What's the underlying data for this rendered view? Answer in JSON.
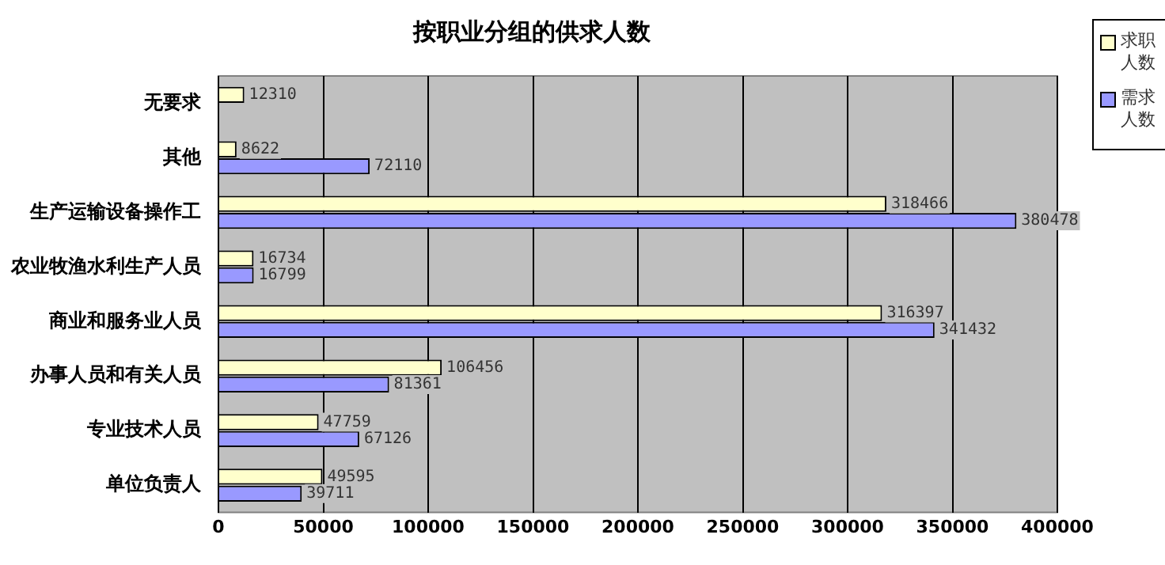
{
  "chart_data": {
    "type": "bar",
    "orientation": "horizontal",
    "title": "按职业分组的供求人数",
    "categories": [
      "无要求",
      "其他",
      "生产运输设备操作工",
      "农业牧渔水利生产人员",
      "商业和服务业人员",
      "办事人员和有关人员",
      "专业技术人员",
      "单位负责人"
    ],
    "series": [
      {
        "name": "求职人数",
        "color": "#ffffcc",
        "values": [
          12310,
          8622,
          318466,
          16734,
          316397,
          106456,
          47759,
          49595
        ]
      },
      {
        "name": "需求人数",
        "color": "#9999ff",
        "values": [
          null,
          72110,
          380478,
          16799,
          341432,
          81361,
          67126,
          39711
        ]
      }
    ],
    "xlim": [
      0,
      400000
    ],
    "xticks": [
      0,
      50000,
      100000,
      150000,
      200000,
      250000,
      300000,
      350000,
      400000
    ],
    "grid": "x",
    "legend": "top right",
    "data_labels": true
  }
}
